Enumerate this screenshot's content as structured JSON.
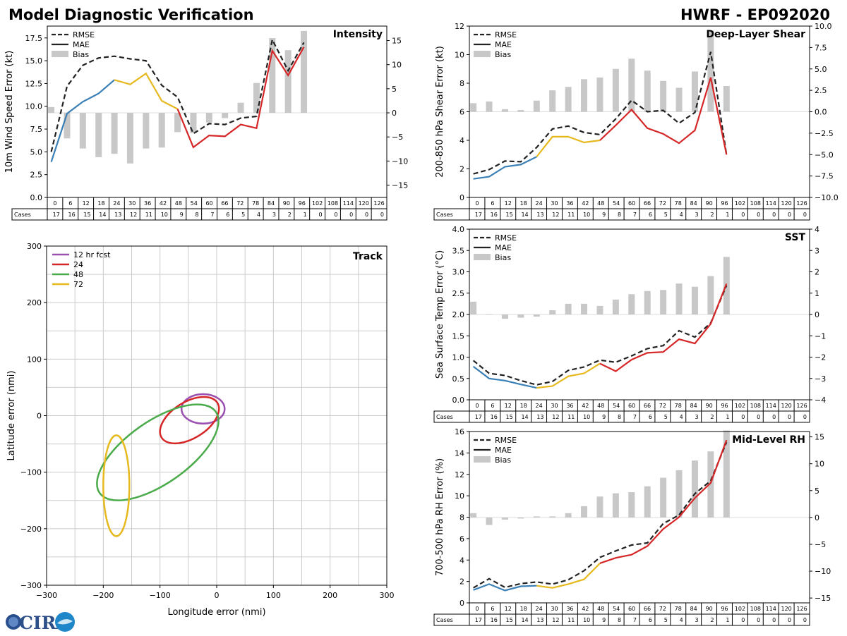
{
  "header": {
    "left_title": "Model Diagnostic Verification",
    "right_title": "HWRF - EP092020"
  },
  "logo": {
    "text": "CIRA",
    "icon": "cira-logo"
  },
  "colors": {
    "rmse": "#222222",
    "segment1": "#3a7fb5",
    "segment2": "#e6b91f",
    "segment3": "#d62728",
    "bias": "#c8c8c8",
    "track_12": "#9b4fb0",
    "track_24": "#d62728",
    "track_48": "#4aab4a",
    "track_72": "#e6b91f",
    "grid": "#cccccc"
  },
  "cases_table": {
    "hours": [
      "0",
      "6",
      "12",
      "18",
      "24",
      "30",
      "36",
      "42",
      "48",
      "54",
      "60",
      "66",
      "72",
      "78",
      "84",
      "90",
      "96",
      "102",
      "108",
      "114",
      "120",
      "126"
    ],
    "cases_label": "Cases",
    "cases": [
      "17",
      "16",
      "15",
      "14",
      "13",
      "12",
      "11",
      "10",
      "9",
      "8",
      "7",
      "6",
      "5",
      "4",
      "3",
      "2",
      "1",
      "0",
      "0",
      "0",
      "0",
      "0"
    ]
  },
  "chart_data": [
    {
      "id": "intensity",
      "type": "line",
      "title": "Intensity",
      "ylabel": "10m Wind Speed Error (kt)",
      "ylim": [
        0,
        18.8
      ],
      "yticks": [
        "0.0",
        "2.5",
        "5.0",
        "7.5",
        "10.0",
        "12.5",
        "15.0",
        "17.5"
      ],
      "y2lim": [
        -17.55,
        18
      ],
      "y2ticks": [
        "−15",
        "−10",
        "−5",
        "0",
        "5",
        "10",
        "15"
      ],
      "legend": [
        "RMSE",
        "MAE",
        "Bias"
      ],
      "hours": [
        0,
        6,
        12,
        18,
        24,
        30,
        36,
        42,
        48,
        54,
        60,
        66,
        72,
        78,
        84,
        90,
        96
      ],
      "rmse": [
        5.0,
        12.2,
        14.5,
        15.3,
        15.5,
        15.2,
        15.0,
        12.3,
        11.0,
        7.0,
        8.1,
        8.0,
        8.7,
        8.9,
        17.3,
        13.9,
        17.0
      ],
      "mae": [
        3.9,
        9.2,
        10.5,
        11.4,
        12.9,
        12.4,
        13.6,
        10.6,
        9.7,
        5.5,
        6.8,
        6.7,
        8.0,
        7.6,
        16.1,
        13.4,
        16.5
      ],
      "bias": [
        1.2,
        -5.3,
        -7.4,
        -9.2,
        -8.5,
        -10.5,
        -7.4,
        -7.2,
        -4.0,
        -4.2,
        -2.0,
        -1.1,
        2.1,
        6.2,
        15.5,
        13.0,
        17.0
      ]
    },
    {
      "id": "shear",
      "type": "line",
      "title": "Deep-Layer Shear",
      "ylabel": "200-850 hPa Shear Error (kt)",
      "ylim": [
        0,
        12
      ],
      "yticks": [
        "0",
        "2",
        "4",
        "6",
        "8",
        "10",
        "12"
      ],
      "y2lim": [
        -10,
        10
      ],
      "y2ticks": [
        "−10.0",
        "−7.5",
        "−5.0",
        "−2.5",
        "0.0",
        "2.5",
        "5.0",
        "7.5",
        "10.0"
      ],
      "legend": [
        "RMSE",
        "MAE",
        "Bias"
      ],
      "hours": [
        0,
        6,
        12,
        18,
        24,
        30,
        36,
        42,
        48,
        54,
        60,
        66,
        72,
        78,
        84,
        90,
        96
      ],
      "rmse": [
        1.65,
        1.95,
        2.55,
        2.5,
        3.5,
        4.8,
        5.0,
        4.55,
        4.4,
        5.5,
        6.8,
        6.0,
        6.1,
        5.2,
        5.95,
        10.2,
        3.0
      ],
      "mae": [
        1.3,
        1.45,
        2.15,
        2.3,
        2.85,
        4.25,
        4.25,
        3.85,
        4.0,
        5.05,
        6.15,
        4.85,
        4.45,
        3.8,
        4.7,
        8.4,
        3.0
      ],
      "bias": [
        1.0,
        1.2,
        0.3,
        0.2,
        1.3,
        2.5,
        2.9,
        3.8,
        4.0,
        5.0,
        6.2,
        4.8,
        3.6,
        2.8,
        4.7,
        9.5,
        3.0
      ]
    },
    {
      "id": "sst",
      "type": "line",
      "title": "SST",
      "ylabel": "Sea Surface Temp Error (°C)",
      "ylim": [
        0,
        4
      ],
      "yticks": [
        "0.0",
        "0.5",
        "1.0",
        "1.5",
        "2.0",
        "2.5",
        "3.0",
        "3.5",
        "4.0"
      ],
      "y2lim": [
        -4,
        4
      ],
      "y2ticks": [
        "−4",
        "−3",
        "−2",
        "−1",
        "0",
        "1",
        "2",
        "3",
        "4"
      ],
      "legend": [
        "RMSE",
        "MAE",
        "Bias"
      ],
      "hours": [
        0,
        6,
        12,
        18,
        24,
        30,
        36,
        42,
        48,
        54,
        60,
        66,
        72,
        78,
        84,
        90,
        96
      ],
      "rmse": [
        0.92,
        0.62,
        0.57,
        0.45,
        0.35,
        0.43,
        0.69,
        0.77,
        0.93,
        0.88,
        1.03,
        1.2,
        1.27,
        1.62,
        1.47,
        1.8,
        2.68
      ],
      "mae": [
        0.78,
        0.5,
        0.45,
        0.36,
        0.28,
        0.32,
        0.55,
        0.62,
        0.85,
        0.67,
        0.94,
        1.1,
        1.12,
        1.42,
        1.32,
        1.78,
        2.72
      ],
      "bias": [
        0.6,
        0.02,
        -0.2,
        -0.15,
        -0.1,
        0.2,
        0.5,
        0.5,
        0.4,
        0.7,
        0.95,
        1.1,
        1.15,
        1.45,
        1.3,
        1.8,
        2.7
      ]
    },
    {
      "id": "rh",
      "type": "line",
      "title": "Mid-Level RH",
      "ylabel": "700-500 hPa RH Error (%)",
      "ylim": [
        0,
        16
      ],
      "yticks": [
        "0",
        "2",
        "4",
        "6",
        "8",
        "10",
        "12",
        "14",
        "16"
      ],
      "y2lim": [
        -15.9,
        16
      ],
      "y2ticks": [
        "−15",
        "−10",
        "−5",
        "0",
        "5",
        "10",
        "15"
      ],
      "legend": [
        "RMSE",
        "MAE",
        "Bias"
      ],
      "hours": [
        0,
        6,
        12,
        18,
        24,
        30,
        36,
        42,
        48,
        54,
        60,
        66,
        72,
        78,
        84,
        90,
        96
      ],
      "rmse": [
        1.4,
        2.25,
        1.45,
        1.8,
        1.95,
        1.75,
        2.15,
        3.0,
        4.25,
        4.85,
        5.4,
        5.6,
        7.4,
        8.2,
        10.2,
        11.4,
        15.0
      ],
      "mae": [
        1.2,
        1.75,
        1.15,
        1.55,
        1.6,
        1.4,
        1.75,
        2.2,
        3.7,
        4.2,
        4.5,
        5.3,
        6.9,
        8.0,
        9.8,
        11.2,
        15.2
      ],
      "bias": [
        0.8,
        -1.4,
        -0.4,
        -0.2,
        0.2,
        0.2,
        0.8,
        2.1,
        3.9,
        4.5,
        4.7,
        5.8,
        7.4,
        8.8,
        10.6,
        12.3,
        16.2
      ]
    }
  ],
  "track_data": {
    "title": "Track",
    "xlabel": "Longitude error (nmi)",
    "ylabel": "Latitude error (nmi)",
    "xlim": [
      -300,
      300
    ],
    "ylim": [
      -300,
      300
    ],
    "xticks": [
      "−300",
      "−200",
      "−100",
      "0",
      "100",
      "200",
      "300"
    ],
    "yticks": [
      "−300",
      "−200",
      "−100",
      "0",
      "100",
      "200",
      "300"
    ],
    "legend": [
      "12 hr fcst",
      "24",
      "48",
      "72"
    ],
    "ellipses": [
      {
        "label": "12 hr fcst",
        "cx": -24,
        "cy": 12,
        "rx": 38,
        "ry": 26,
        "angle": 0
      },
      {
        "label": "24",
        "cx": -48,
        "cy": -8,
        "rx": 58,
        "ry": 32,
        "angle": 32
      },
      {
        "label": "48",
        "cx": -104,
        "cy": -65,
        "rx": 125,
        "ry": 55,
        "angle": 35
      },
      {
        "label": "72",
        "cx": -177,
        "cy": -124,
        "rx": 23,
        "ry": 89,
        "angle": 0
      }
    ]
  }
}
